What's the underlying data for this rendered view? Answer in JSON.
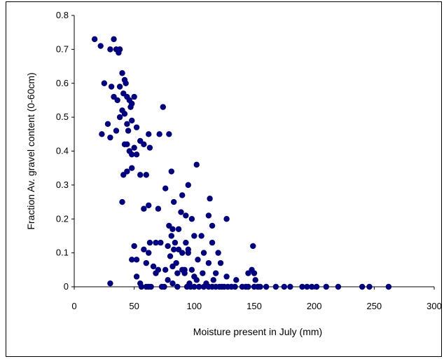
{
  "chart_data": {
    "type": "scatter",
    "title": "",
    "xlabel": "Moisture present in July (mm)",
    "ylabel": "Fraction Av. gravel content (0-60cm)",
    "xlim": [
      0,
      300
    ],
    "ylim": [
      0,
      0.8
    ],
    "xticks": [
      "0",
      "50",
      "100",
      "150",
      "200",
      "250",
      "300"
    ],
    "yticks": [
      "0",
      "0.1",
      "0.2",
      "0.3",
      "0.4",
      "0.5",
      "0.6",
      "0.7",
      "0.8"
    ],
    "grid": false,
    "legend": "none",
    "marker_color": "#000080",
    "points": [
      [
        17,
        0.73
      ],
      [
        22,
        0.71
      ],
      [
        33,
        0.73
      ],
      [
        30,
        0.7
      ],
      [
        35,
        0.7
      ],
      [
        38,
        0.7
      ],
      [
        37,
        0.69
      ],
      [
        25,
        0.6
      ],
      [
        31,
        0.59
      ],
      [
        40,
        0.63
      ],
      [
        42,
        0.61
      ],
      [
        43,
        0.6
      ],
      [
        38,
        0.59
      ],
      [
        33,
        0.56
      ],
      [
        36,
        0.55
      ],
      [
        41,
        0.57
      ],
      [
        44,
        0.56
      ],
      [
        46,
        0.55
      ],
      [
        48,
        0.54
      ],
      [
        50,
        0.56
      ],
      [
        47,
        0.53
      ],
      [
        40,
        0.52
      ],
      [
        42,
        0.51
      ],
      [
        38,
        0.5
      ],
      [
        44,
        0.48
      ],
      [
        48,
        0.49
      ],
      [
        52,
        0.47
      ],
      [
        23,
        0.45
      ],
      [
        30,
        0.44
      ],
      [
        35,
        0.46
      ],
      [
        45,
        0.46
      ],
      [
        28,
        0.48
      ],
      [
        42,
        0.42
      ],
      [
        44,
        0.42
      ],
      [
        50,
        0.41
      ],
      [
        46,
        0.4
      ],
      [
        52,
        0.39
      ],
      [
        48,
        0.39
      ],
      [
        55,
        0.43
      ],
      [
        58,
        0.42
      ],
      [
        62,
        0.45
      ],
      [
        63,
        0.41
      ],
      [
        71,
        0.45
      ],
      [
        74,
        0.53
      ],
      [
        79,
        0.45
      ],
      [
        44,
        0.34
      ],
      [
        48,
        0.35
      ],
      [
        41,
        0.33
      ],
      [
        55,
        0.33
      ],
      [
        60,
        0.33
      ],
      [
        40,
        0.25
      ],
      [
        81,
        0.34
      ],
      [
        76,
        0.29
      ],
      [
        90,
        0.27
      ],
      [
        95,
        0.3
      ],
      [
        102,
        0.36
      ],
      [
        83,
        0.25
      ],
      [
        113,
        0.26
      ],
      [
        58,
        0.23
      ],
      [
        62,
        0.24
      ],
      [
        70,
        0.23
      ],
      [
        89,
        0.22
      ],
      [
        93,
        0.21
      ],
      [
        98,
        0.2
      ],
      [
        112,
        0.21
      ],
      [
        127,
        0.2
      ],
      [
        115,
        0.18
      ],
      [
        79,
        0.18
      ],
      [
        82,
        0.17
      ],
      [
        81,
        0.15
      ],
      [
        87,
        0.17
      ],
      [
        84,
        0.13
      ],
      [
        106,
        0.15
      ],
      [
        100,
        0.15
      ],
      [
        68,
        0.13
      ],
      [
        72,
        0.13
      ],
      [
        63,
        0.13
      ],
      [
        78,
        0.12
      ],
      [
        93,
        0.13
      ],
      [
        95,
        0.11
      ],
      [
        115,
        0.13
      ],
      [
        58,
        0.11
      ],
      [
        62,
        0.1
      ],
      [
        50,
        0.12
      ],
      [
        52,
        0.08
      ],
      [
        48,
        0.08
      ],
      [
        83,
        0.11
      ],
      [
        87,
        0.11
      ],
      [
        90,
        0.1
      ],
      [
        95,
        0.1
      ],
      [
        103,
        0.08
      ],
      [
        108,
        0.1
      ],
      [
        120,
        0.1
      ],
      [
        122,
        0.07
      ],
      [
        112,
        0.07
      ],
      [
        80,
        0.09
      ],
      [
        85,
        0.07
      ],
      [
        90,
        0.05
      ],
      [
        82,
        0.06
      ],
      [
        92,
        0.05
      ],
      [
        76,
        0.05
      ],
      [
        70,
        0.05
      ],
      [
        66,
        0.06
      ],
      [
        60,
        0.07
      ],
      [
        68,
        0.04
      ],
      [
        86,
        0.04
      ],
      [
        98,
        0.05
      ],
      [
        100,
        0.03
      ],
      [
        118,
        0.04
      ],
      [
        127,
        0.03
      ],
      [
        52,
        0.03
      ],
      [
        55,
        0.01
      ],
      [
        60,
        0.0
      ],
      [
        62,
        0.0
      ],
      [
        78,
        0.02
      ],
      [
        82,
        0.01
      ],
      [
        96,
        0.01
      ],
      [
        100,
        0.0
      ],
      [
        104,
        0.0
      ],
      [
        108,
        0.0
      ],
      [
        112,
        0.0
      ],
      [
        115,
        0.0
      ],
      [
        118,
        0.0
      ],
      [
        123,
        0.0
      ],
      [
        128,
        0.0
      ],
      [
        134,
        0.0
      ],
      [
        140,
        0.0
      ],
      [
        145,
        0.0
      ],
      [
        150,
        0.0
      ],
      [
        155,
        0.0
      ],
      [
        160,
        0.0
      ],
      [
        168,
        0.0
      ],
      [
        175,
        0.0
      ],
      [
        180,
        0.0
      ],
      [
        190,
        0.0
      ],
      [
        194,
        0.0
      ],
      [
        198,
        0.0
      ],
      [
        202,
        0.0
      ],
      [
        210,
        0.0
      ],
      [
        220,
        0.0
      ],
      [
        240,
        0.0
      ],
      [
        246,
        0.0
      ],
      [
        262,
        0.0
      ],
      [
        30,
        0.01
      ],
      [
        73,
        0.0
      ],
      [
        135,
        0.02
      ],
      [
        145,
        0.04
      ],
      [
        148,
        0.05
      ],
      [
        150,
        0.04
      ],
      [
        149,
        0.12
      ],
      [
        151,
        0.02
      ],
      [
        92,
        0.04
      ],
      [
        86,
        0.0
      ],
      [
        94,
        0.0
      ],
      [
        102,
        0.02
      ],
      [
        110,
        0.01
      ],
      [
        125,
        0.0
      ],
      [
        131,
        0.0
      ],
      [
        153,
        0.0
      ],
      [
        143,
        0.0
      ],
      [
        121,
        0.0
      ],
      [
        116,
        0.02
      ],
      [
        107,
        0.04
      ],
      [
        97,
        0.0
      ],
      [
        75,
        0.0
      ],
      [
        64,
        0.0
      ],
      [
        56,
        0.0
      ]
    ]
  }
}
